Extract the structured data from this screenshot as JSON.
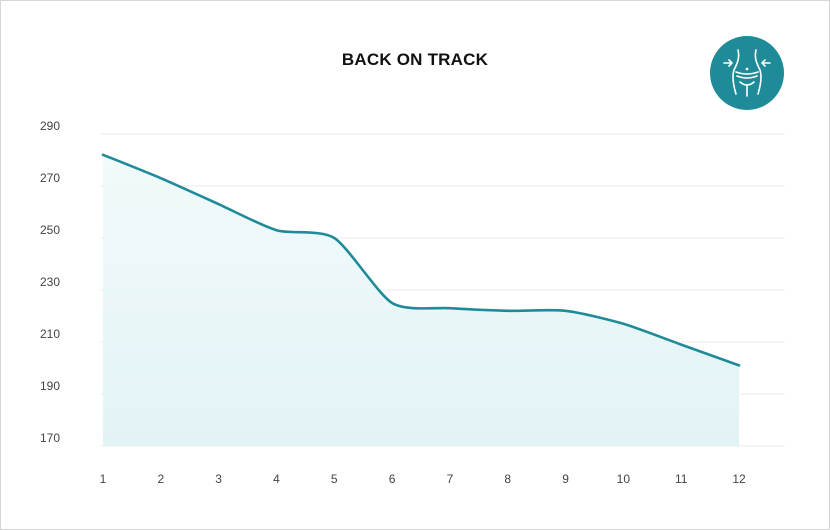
{
  "chart_data": {
    "type": "area",
    "title": "BACK ON TRACK",
    "xlabel": "",
    "ylabel": "",
    "x": [
      1,
      2,
      3,
      4,
      5,
      6,
      7,
      8,
      9,
      10,
      11,
      12
    ],
    "x_tick_labels": [
      "1",
      "2",
      "3",
      "4",
      "5",
      "6",
      "7",
      "8",
      "9",
      "10",
      "11",
      "12"
    ],
    "series": [
      {
        "values": [
          282,
          273,
          263,
          253,
          250,
          225,
          223,
          222,
          222,
          217,
          209,
          201
        ]
      }
    ],
    "ylim": [
      170,
      290
    ],
    "y_ticks": [
      290,
      270,
      250,
      230,
      210,
      190,
      170
    ],
    "y_tick_labels": [
      "290",
      "270",
      "250",
      "230",
      "210",
      "190",
      "170"
    ],
    "grid": true,
    "legend": "none",
    "colors": {
      "line": "#1f8b99",
      "area_top": "#eef8fa",
      "area_bottom": "#e2f3f6",
      "grid": "#ececec",
      "badge": "#1f8b99"
    }
  },
  "badge": {
    "icon": "waist-measure-icon"
  }
}
